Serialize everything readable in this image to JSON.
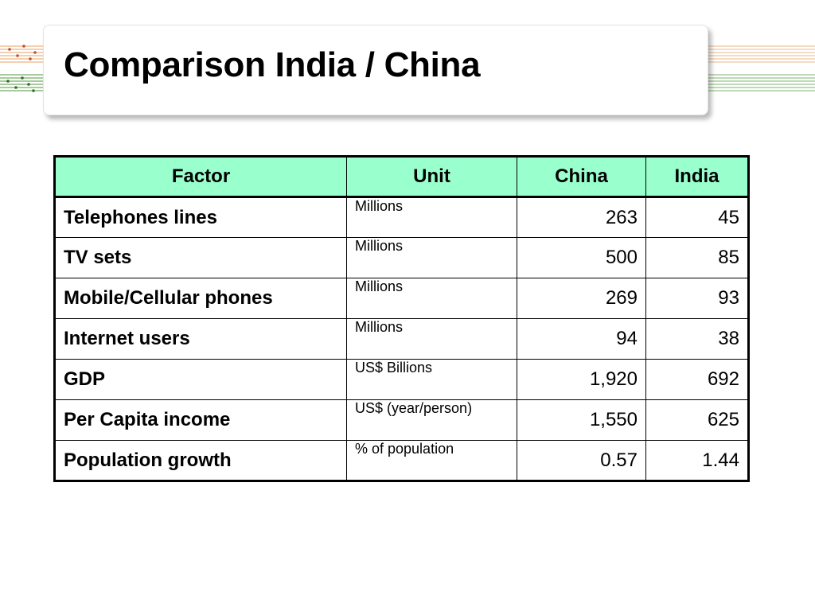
{
  "slide": {
    "title": "Comparison India / China"
  },
  "table": {
    "headers": [
      "Factor",
      "Unit",
      "China",
      "India"
    ],
    "rows": [
      {
        "factor": "Telephones lines",
        "unit": "Millions",
        "china": "263",
        "india": "45"
      },
      {
        "factor": "TV sets",
        "unit": "Millions",
        "china": "500",
        "india": "85"
      },
      {
        "factor": "Mobile/Cellular phones",
        "unit": "Millions",
        "china": "269",
        "india": "93"
      },
      {
        "factor": "Internet users",
        "unit": "Millions",
        "china": "94",
        "india": "38"
      },
      {
        "factor": "GDP",
        "unit": "US$ Billions",
        "china": "1,920",
        "india": "692"
      },
      {
        "factor": "Per Capita income",
        "unit": "US$ (year/person)",
        "china": "1,550",
        "india": "625"
      },
      {
        "factor": "Population growth",
        "unit": "% of population",
        "china": "0.57",
        "india": "1.44"
      }
    ]
  },
  "colors": {
    "header_fill": "#99ffcc",
    "border": "#000000",
    "deco_orange": "#e8a060",
    "deco_green": "#4f9a3a"
  }
}
